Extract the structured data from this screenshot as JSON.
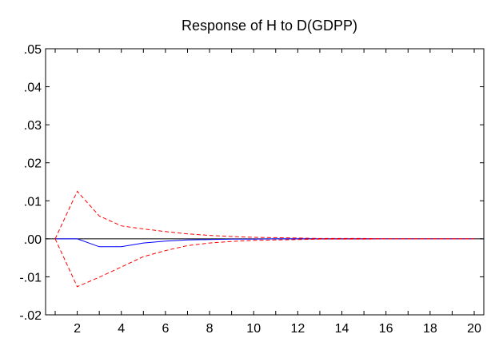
{
  "chart_data": {
    "type": "line",
    "title": "Response of H to D(GDPP)",
    "xlabel": "",
    "ylabel": "",
    "xlim": [
      1,
      20
    ],
    "ylim": [
      -0.02,
      0.05
    ],
    "x_ticks": [
      2,
      4,
      6,
      8,
      10,
      12,
      14,
      16,
      18,
      20
    ],
    "y_ticks": [
      -0.02,
      -0.01,
      0.0,
      0.01,
      0.02,
      0.03,
      0.04,
      0.05
    ],
    "y_tick_labels": [
      "-.02",
      "-.01",
      ".00",
      ".01",
      ".02",
      ".03",
      ".04",
      ".05"
    ],
    "x": [
      1,
      2,
      3,
      4,
      5,
      6,
      7,
      8,
      9,
      10,
      11,
      12,
      13,
      14,
      15,
      16,
      17,
      18,
      19,
      20
    ],
    "zero_line": true,
    "grid": false,
    "series": [
      {
        "style": "solid",
        "color": "#0000ff",
        "values": [
          0.0,
          0.0,
          -0.0021,
          -0.0021,
          -0.0011,
          -0.0006,
          -0.0003,
          -0.0002,
          -0.0001,
          -0.0001,
          0.0,
          0.0,
          0.0,
          0.0,
          0.0,
          0.0,
          0.0,
          0.0,
          0.0,
          0.0
        ]
      },
      {
        "style": "dashed",
        "color": "#ff0000",
        "values": [
          0.0,
          0.0125,
          0.006,
          0.0034,
          0.0026,
          0.0019,
          0.0013,
          0.0009,
          0.0006,
          0.0004,
          0.0003,
          0.0002,
          0.0001,
          0.0001,
          0.0001,
          0.0,
          0.0,
          0.0,
          0.0,
          0.0
        ]
      },
      {
        "style": "dashed",
        "color": "#ff0000",
        "values": [
          0.0,
          -0.0126,
          -0.0101,
          -0.0074,
          -0.0047,
          -0.0031,
          -0.0018,
          -0.0011,
          -0.0007,
          -0.0004,
          -0.0003,
          -0.0002,
          -0.0001,
          -0.0001,
          -0.0001,
          0.0,
          0.0,
          0.0,
          0.0,
          0.0
        ]
      }
    ]
  }
}
